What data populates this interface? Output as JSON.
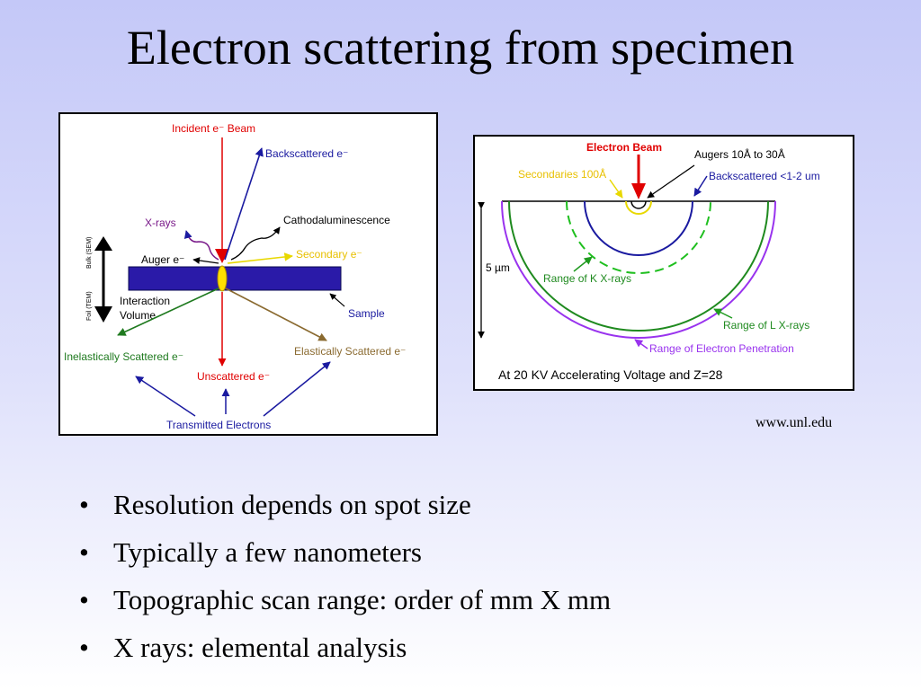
{
  "title": "Electron scattering from specimen",
  "left_diagram": {
    "incident_beam": "Incident e⁻ Beam",
    "backscattered": "Backscattered e⁻",
    "xrays": "X-rays",
    "cathodoluminescence": "Cathodaluminescence",
    "secondary": "Secondary e⁻",
    "auger": "Auger e⁻",
    "bulk_label": "Bulk (SEM)",
    "foil_label": "Foil (TEM)",
    "interaction_volume_1": "Interaction",
    "interaction_volume_2": "Volume",
    "sample": "Sample",
    "inelastic": "Inelastically Scattered e⁻",
    "elastic": "Elastically Scattered e⁻",
    "unscattered": "Unscattered e⁻",
    "transmitted": "Transmitted Electrons"
  },
  "right_diagram": {
    "electron_beam": "Electron Beam",
    "augers": "Augers 10Å to 30Å",
    "secondaries": "Secondaries 100Å",
    "backscattered": "Backscattered <1-2 um",
    "depth": "5 µm",
    "range_k": "Range of K X-rays",
    "range_l": "Range of L X-rays",
    "range_penetration": "Range of Electron Penetration",
    "caption": "At 20 KV Accelerating Voltage and Z=28"
  },
  "credit": "www.unl.edu",
  "bullets": [
    "Resolution depends on spot size",
    "Typically a few nanometers",
    "Topographic scan range: order of mm X mm",
    "X rays: elemental analysis"
  ],
  "bullet_glyph": "•",
  "colors": {
    "beam_red": "#e00000",
    "arrow_blue": "#1a1aa0",
    "sample_purple": "#2a1aa8",
    "green": "#1f7a1f",
    "secondary_yellow": "#e8d800",
    "penetration_violet": "#9933ee"
  }
}
